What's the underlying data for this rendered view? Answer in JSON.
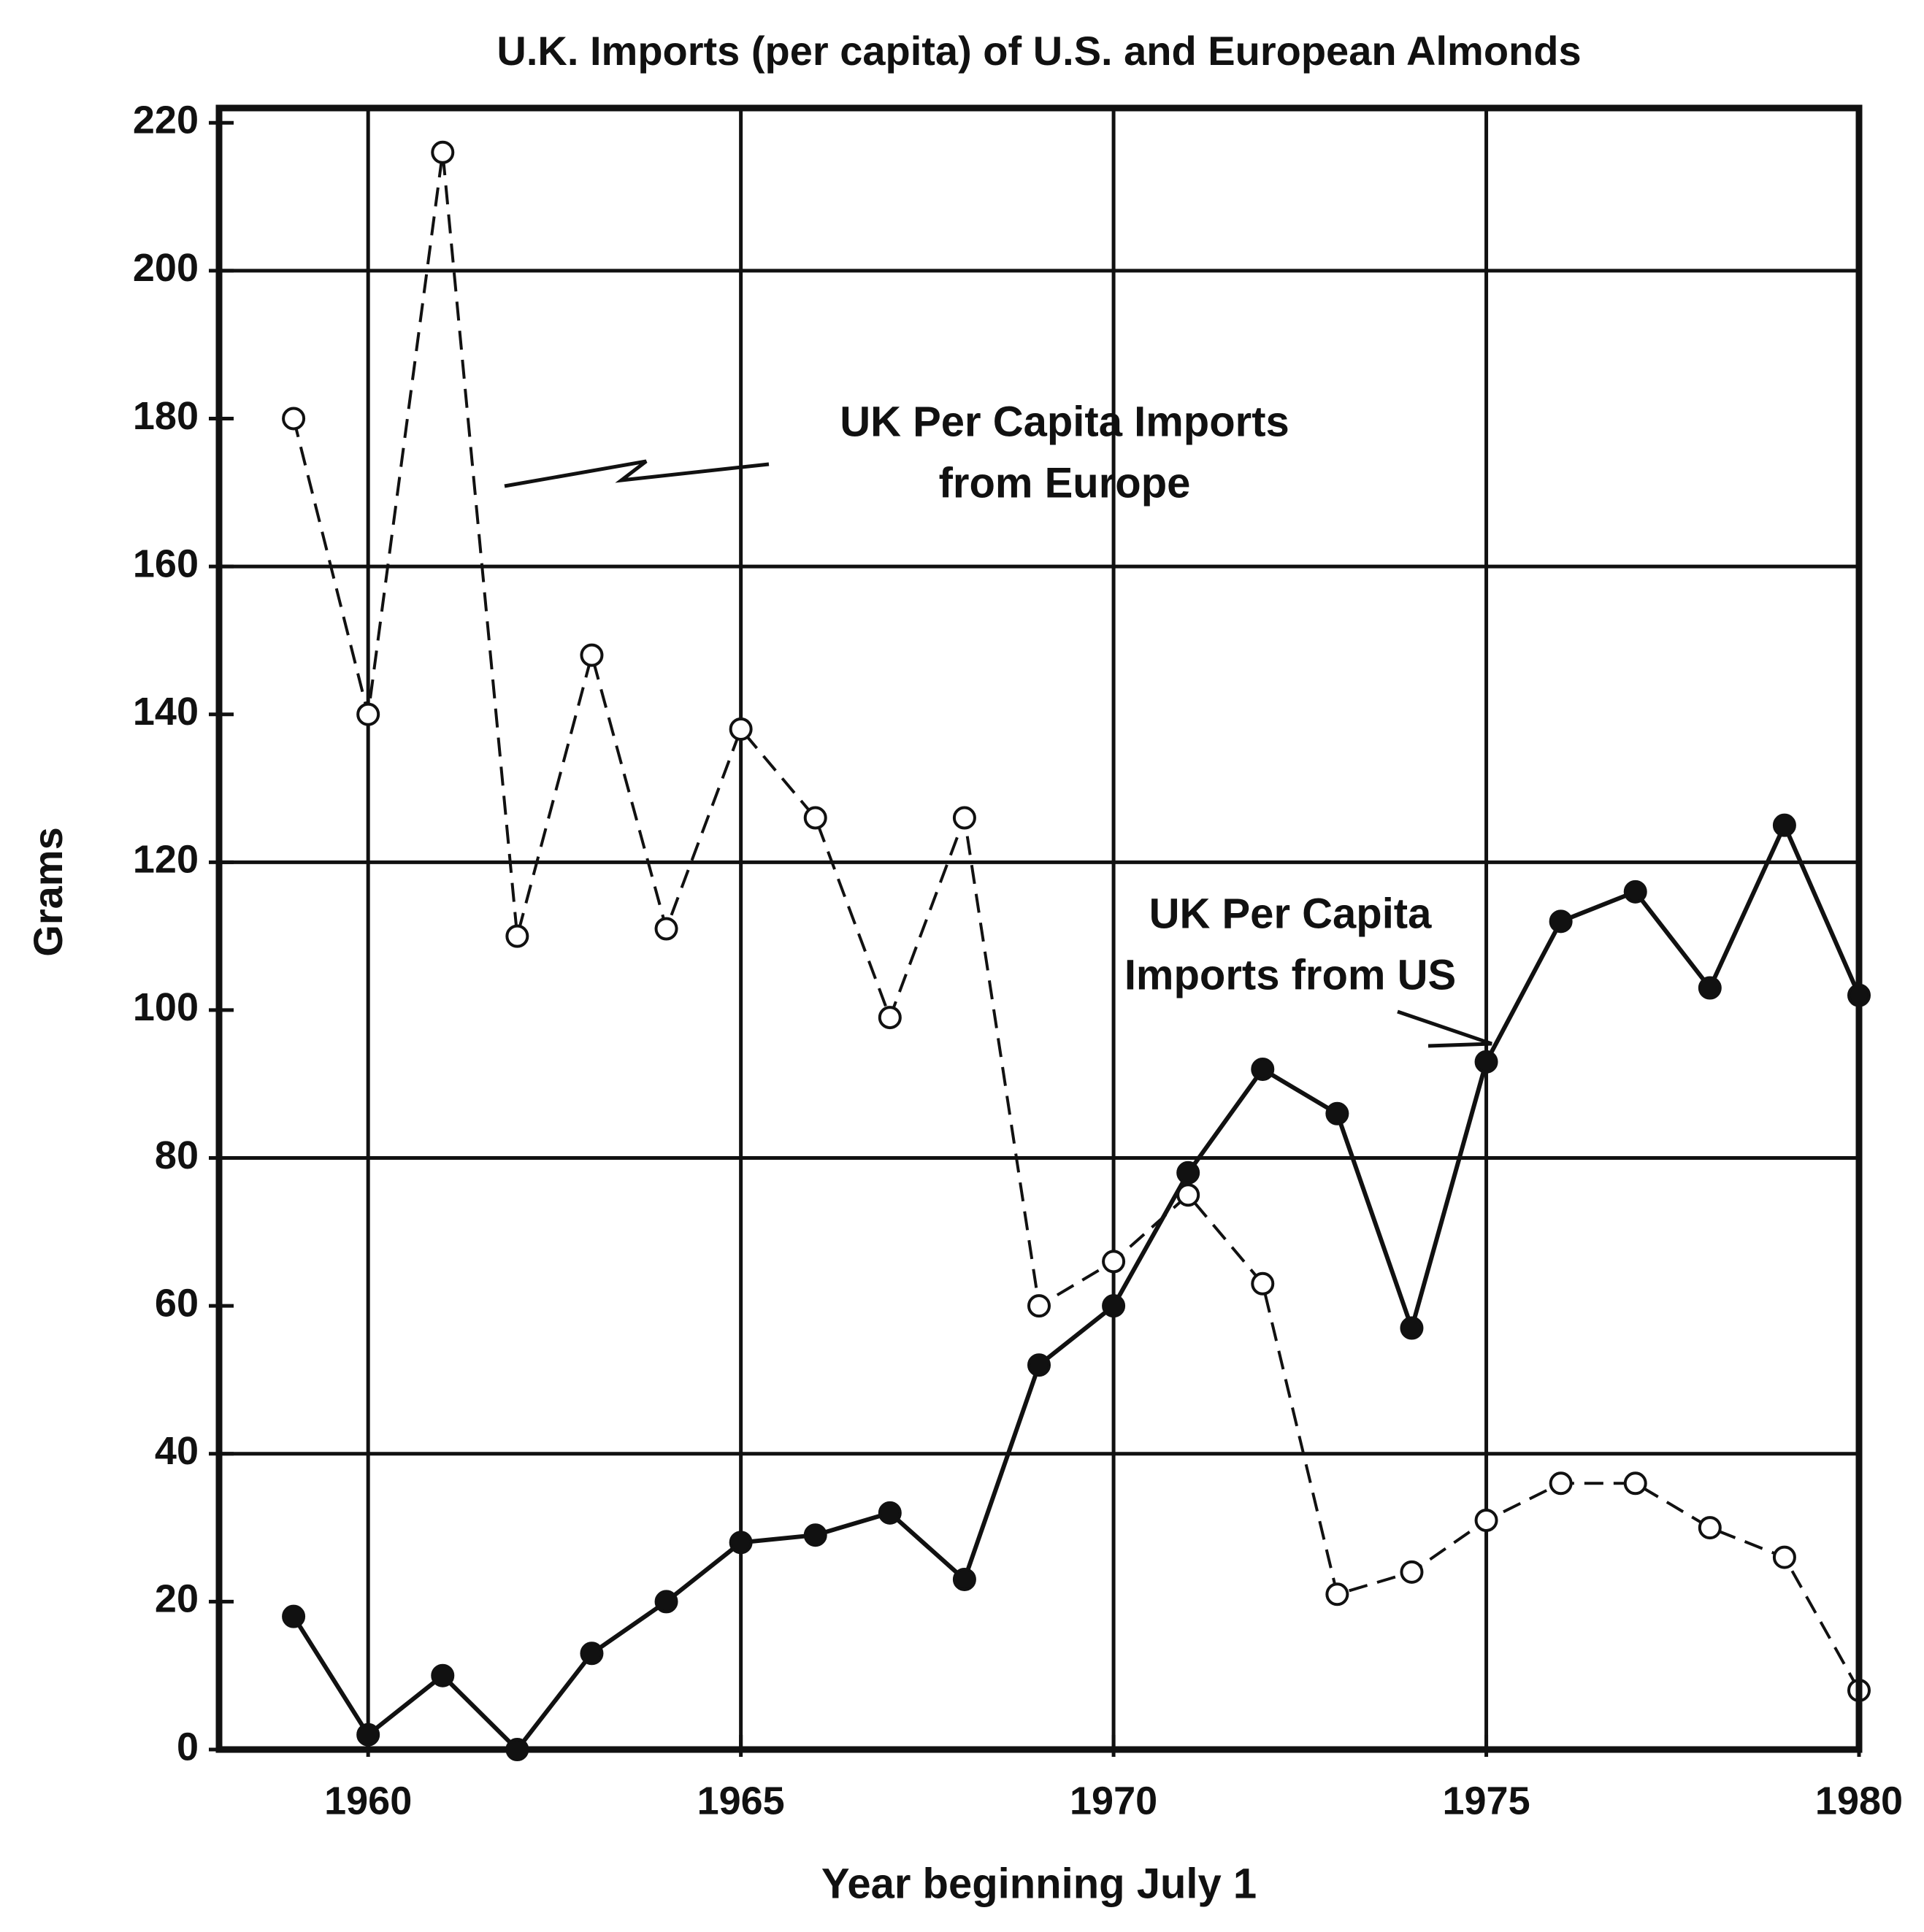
{
  "chart_data": {
    "type": "line",
    "title": "U.K. Imports (per capita) of U.S. and European Almonds",
    "xlabel": "Year beginning July 1",
    "ylabel": "Grams",
    "x": [
      1959,
      1960,
      1961,
      1962,
      1963,
      1964,
      1965,
      1966,
      1967,
      1968,
      1969,
      1970,
      1971,
      1972,
      1973,
      1974,
      1975,
      1976,
      1977,
      1978,
      1979,
      1980
    ],
    "series": [
      {
        "name": [
          "UK Per Capita Imports",
          "from Europe"
        ],
        "color": "#111111",
        "style": "dashed",
        "marker": "open",
        "values": [
          180,
          140,
          216,
          110,
          148,
          111,
          138,
          126,
          99,
          126,
          60,
          66,
          75,
          63,
          21,
          24,
          31,
          36,
          36,
          30,
          26,
          8
        ]
      },
      {
        "name": [
          "UK Per Capita",
          "Imports from US"
        ],
        "color": "#111111",
        "style": "solid",
        "marker": "filled",
        "values": [
          18,
          2,
          10,
          0,
          13,
          20,
          28,
          29,
          32,
          23,
          52,
          60,
          78,
          92,
          86,
          57,
          93,
          112,
          116,
          103,
          125,
          102
        ]
      }
    ],
    "xlim": [
      1958,
      1980
    ],
    "ylim": [
      0,
      222
    ],
    "xticks": [
      1960,
      1965,
      1970,
      1975,
      1980
    ],
    "yticks": [
      0,
      20,
      40,
      60,
      80,
      100,
      120,
      140,
      160,
      180,
      200,
      220
    ],
    "xgrid": [
      1960,
      1965,
      1970,
      1975
    ],
    "ygrid": [
      40,
      80,
      120,
      160,
      200
    ]
  }
}
